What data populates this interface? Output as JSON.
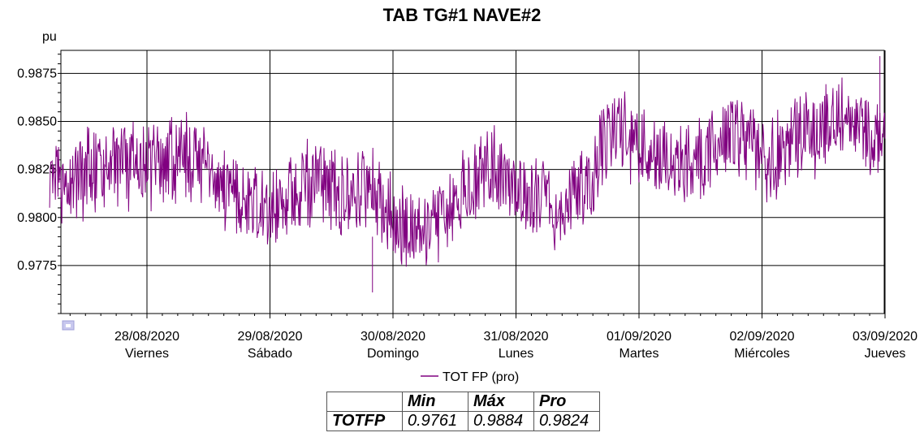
{
  "chart_data": {
    "type": "line",
    "title": "TAB TG#1 NAVE#2",
    "ylabel": "pu",
    "ylim": [
      0.975,
      0.9887
    ],
    "y_ticks": [
      "0.9775",
      "0.9800",
      "0.9825",
      "0.9850",
      "0.9875"
    ],
    "xlim": [
      "2020-08-27T00:00",
      "2020-09-03T00:00"
    ],
    "x_ticks": [
      {
        "date": "28/08/2020",
        "day": "Viernes"
      },
      {
        "date": "29/08/2020",
        "day": "Sábado"
      },
      {
        "date": "30/08/2020",
        "day": "Domingo"
      },
      {
        "date": "31/08/2020",
        "day": "Lunes"
      },
      {
        "date": "01/09/2020",
        "day": "Martes"
      },
      {
        "date": "02/09/2020",
        "day": "Miércoles"
      },
      {
        "date": "03/09/2020",
        "day": "Jueves"
      }
    ],
    "grid": true,
    "legend_position": "bottom",
    "series": [
      {
        "name": "TOT FP (pro)",
        "color": "#800080",
        "x": [
          "2020-08-27T05:00",
          "2020-08-27T08:00",
          "2020-08-27T12:00",
          "2020-08-27T16:00",
          "2020-08-27T20:00",
          "2020-08-28T00:00",
          "2020-08-28T04:00",
          "2020-08-28T08:00",
          "2020-08-28T12:00",
          "2020-08-28T16:00",
          "2020-08-28T20:00",
          "2020-08-29T00:00",
          "2020-08-29T04:00",
          "2020-08-29T08:00",
          "2020-08-29T12:00",
          "2020-08-29T16:00",
          "2020-08-29T20:00",
          "2020-08-30T00:00",
          "2020-08-30T04:00",
          "2020-08-30T08:00",
          "2020-08-30T12:00",
          "2020-08-30T16:00",
          "2020-08-30T20:00",
          "2020-08-31T00:00",
          "2020-08-31T04:00",
          "2020-08-31T08:00",
          "2020-08-31T12:00",
          "2020-08-31T16:00",
          "2020-08-31T20:00",
          "2020-09-01T00:00",
          "2020-09-01T04:00",
          "2020-09-01T08:00",
          "2020-09-01T12:00",
          "2020-09-01T16:00",
          "2020-09-01T20:00",
          "2020-09-02T00:00",
          "2020-09-02T04:00",
          "2020-09-02T08:00",
          "2020-09-02T12:00",
          "2020-09-02T16:00",
          "2020-09-02T20:00",
          "2020-09-03T00:00"
        ],
        "y": [
          0.982,
          0.9812,
          0.9822,
          0.9826,
          0.9828,
          0.9827,
          0.983,
          0.9831,
          0.9828,
          0.9816,
          0.9808,
          0.9805,
          0.9812,
          0.9818,
          0.9815,
          0.9813,
          0.9818,
          0.9798,
          0.979,
          0.9793,
          0.9806,
          0.982,
          0.9825,
          0.9816,
          0.9808,
          0.9802,
          0.9812,
          0.9828,
          0.9848,
          0.9836,
          0.9833,
          0.9826,
          0.9834,
          0.984,
          0.9845,
          0.983,
          0.9834,
          0.9842,
          0.9846,
          0.985,
          0.9845,
          0.9842
        ],
        "min_y": 0.9761,
        "max_y": 0.9884
      }
    ]
  },
  "stats_table": {
    "headers": [
      "Min",
      "Máx",
      "Pro"
    ],
    "row_label": "TOTFP",
    "values": [
      "0.9761",
      "0.9884",
      "0.9824"
    ]
  }
}
